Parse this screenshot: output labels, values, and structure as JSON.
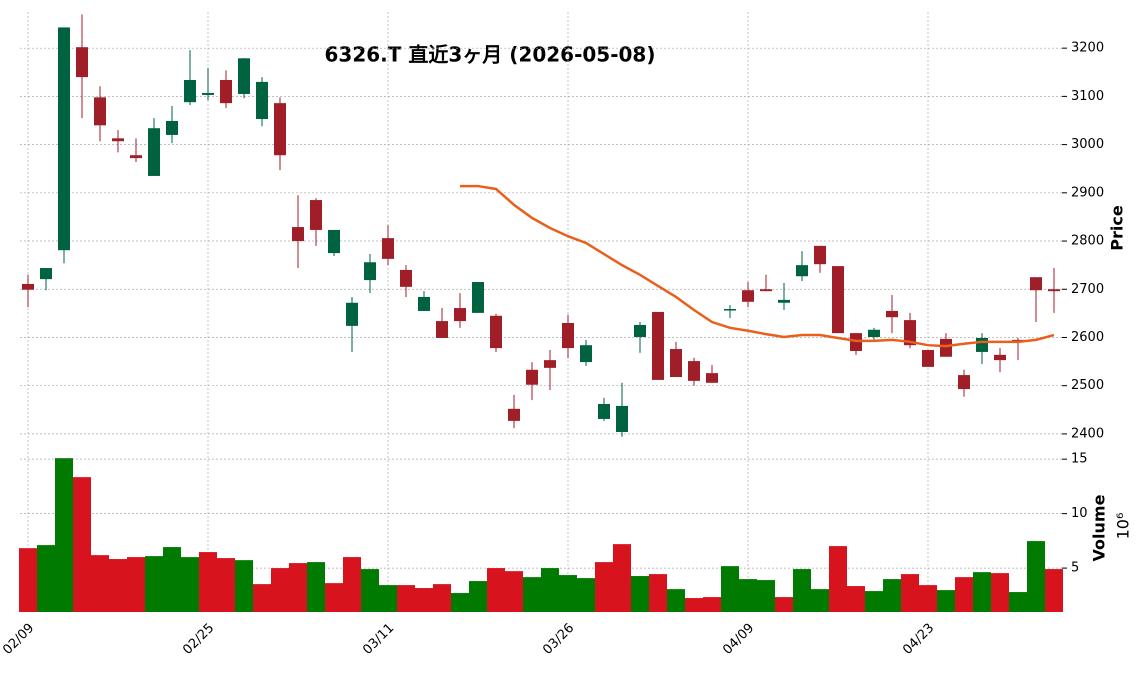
{
  "chart_data": {
    "type": "candlestick",
    "title": "6326.T 直近3ヶ月 (2026-05-08)",
    "categories": [
      "02/09",
      null,
      null,
      null,
      null,
      null,
      null,
      null,
      null,
      null,
      "02/25",
      null,
      null,
      null,
      null,
      null,
      null,
      null,
      null,
      null,
      "03/11",
      null,
      null,
      null,
      null,
      null,
      null,
      null,
      null,
      null,
      "03/26",
      null,
      null,
      null,
      null,
      null,
      null,
      null,
      null,
      null,
      "04/09",
      null,
      null,
      null,
      null,
      null,
      null,
      null,
      null,
      null,
      "04/23",
      null,
      null,
      null,
      null,
      null,
      null,
      null
    ],
    "open": [
      2711,
      2721,
      2781,
      3202,
      3098,
      3013,
      2978,
      2935,
      3020,
      3088,
      3103,
      3134,
      3105,
      3053,
      3086,
      2829,
      2885,
      2775,
      2624,
      2719,
      2806,
      2740,
      2655,
      2634,
      2661,
      2651,
      2645,
      2452,
      2533,
      2553,
      2630,
      2549,
      2431,
      2404,
      2601,
      2653,
      2576,
      2551,
      2526,
      2657,
      2698,
      2700,
      2672,
      2727,
      2790,
      2748,
      2609,
      2601,
      2655,
      2636,
      2574,
      2597,
      2522,
      2570,
      2564,
      2595,
      2725,
      2700
    ],
    "high": [
      2730,
      2744,
      3243,
      3270,
      3121,
      3030,
      3013,
      3055,
      3080,
      3196,
      3159,
      3154,
      3179,
      3140,
      3098,
      2895,
      2889,
      2823,
      2684,
      2773,
      2833,
      2750,
      2696,
      2661,
      2692,
      2715,
      2649,
      2481,
      2549,
      2574,
      2647,
      2595,
      2475,
      2506,
      2632,
      2653,
      2591,
      2558,
      2543,
      2667,
      2715,
      2730,
      2713,
      2779,
      2790,
      2748,
      2609,
      2620,
      2688,
      2651,
      2574,
      2609,
      2533,
      2609,
      2578,
      2599,
      2725,
      2744
    ],
    "low": [
      2663,
      2698,
      2754,
      3055,
      3007,
      2984,
      2964,
      2935,
      3003,
      3082,
      3092,
      3076,
      3096,
      3038,
      2947,
      2744,
      2790,
      2769,
      2570,
      2692,
      2750,
      2684,
      2655,
      2599,
      2620,
      2651,
      2570,
      2412,
      2470,
      2491,
      2557,
      2541,
      2427,
      2394,
      2568,
      2512,
      2518,
      2500,
      2506,
      2640,
      2663,
      2696,
      2657,
      2717,
      2734,
      2609,
      2564,
      2595,
      2609,
      2578,
      2539,
      2560,
      2477,
      2545,
      2528,
      2553,
      2632,
      2651
    ],
    "close": [
      2699,
      2744,
      3243,
      3140,
      3040,
      3007,
      2972,
      3034,
      3049,
      3134,
      3107,
      3086,
      3179,
      3130,
      2978,
      2800,
      2823,
      2823,
      2672,
      2756,
      2763,
      2705,
      2684,
      2599,
      2634,
      2715,
      2578,
      2427,
      2502,
      2537,
      2578,
      2584,
      2462,
      2458,
      2626,
      2512,
      2518,
      2510,
      2506,
      2659,
      2674,
      2696,
      2678,
      2750,
      2752,
      2609,
      2572,
      2616,
      2642,
      2584,
      2539,
      2560,
      2493,
      2599,
      2553,
      2593,
      2698,
      2696
    ],
    "up_color": "#006340",
    "down_color": "#a01e28",
    "ylim": [
      2377,
      3275
    ],
    "yticks": [
      2400,
      2500,
      2600,
      2700,
      2800,
      2900,
      3000,
      3100,
      3200
    ],
    "ylabel": "Price",
    "grid": true,
    "ma": {
      "color": "#e8601c",
      "values": [
        null,
        null,
        null,
        null,
        null,
        null,
        null,
        null,
        null,
        null,
        null,
        null,
        null,
        null,
        null,
        null,
        null,
        null,
        null,
        null,
        null,
        null,
        null,
        null,
        2914,
        2914,
        2908,
        2875,
        2848,
        2827,
        2810,
        2796,
        2773,
        2750,
        2730,
        2707,
        2684,
        2657,
        2632,
        2620,
        2614,
        2607,
        2601,
        2605,
        2605,
        2599,
        2593,
        2593,
        2595,
        2591,
        2584,
        2582,
        2587,
        2591,
        2591,
        2591,
        2595,
        2605
      ]
    },
    "volume": {
      "ylabel": "Volume",
      "scale_label": "10⁶",
      "ylim": [
        0.97,
        16.3
      ],
      "yticks": [
        5,
        10,
        15
      ],
      "values": [
        6.83,
        7.11,
        15.09,
        13.35,
        6.19,
        5.83,
        6.01,
        6.1,
        6.93,
        6.01,
        6.47,
        5.92,
        5.73,
        3.53,
        5.0,
        5.46,
        5.55,
        3.62,
        6.01,
        4.91,
        3.44,
        3.44,
        3.17,
        3.53,
        2.71,
        3.81,
        5.0,
        4.72,
        4.17,
        5.0,
        4.36,
        4.08,
        5.55,
        7.2,
        4.27,
        4.45,
        3.07,
        2.25,
        2.34,
        5.18,
        3.99,
        3.9,
        2.34,
        4.91,
        3.07,
        7.02,
        3.35,
        2.89,
        3.99,
        4.45,
        3.44,
        2.98,
        4.17,
        4.63,
        4.54,
        2.8,
        7.48,
        4.91
      ],
      "colors": [
        "#d7141e",
        "#007a00",
        "#007a00",
        "#d7141e",
        "#d7141e",
        "#d7141e",
        "#d7141e",
        "#007a00",
        "#007a00",
        "#007a00",
        "#d7141e",
        "#d7141e",
        "#007a00",
        "#d7141e",
        "#d7141e",
        "#d7141e",
        "#007a00",
        "#d7141e",
        "#d7141e",
        "#007a00",
        "#007a00",
        "#d7141e",
        "#d7141e",
        "#d7141e",
        "#007a00",
        "#007a00",
        "#d7141e",
        "#d7141e",
        "#007a00",
        "#007a00",
        "#007a00",
        "#007a00",
        "#d7141e",
        "#d7141e",
        "#007a00",
        "#d7141e",
        "#007a00",
        "#d7141e",
        "#d7141e",
        "#007a00",
        "#007a00",
        "#007a00",
        "#d7141e",
        "#007a00",
        "#007a00",
        "#d7141e",
        "#d7141e",
        "#007a00",
        "#007a00",
        "#d7141e",
        "#d7141e",
        "#007a00",
        "#d7141e",
        "#007a00",
        "#d7141e",
        "#007a00",
        "#007a00",
        "#d7141e"
      ]
    }
  }
}
